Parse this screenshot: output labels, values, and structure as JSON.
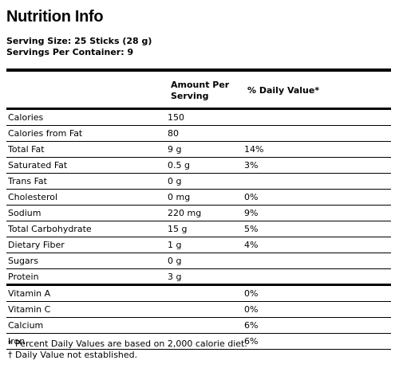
{
  "title": "Nutrition Info",
  "serving": {
    "size": "Serving Size: 25 Sticks (28 g)",
    "per_container": "Servings Per Container: 9"
  },
  "table": {
    "header_amount": "Amount Per Serving",
    "header_dv": "% Daily Value*",
    "rows": [
      {
        "name": "Calories",
        "amount": "150",
        "dv": ""
      },
      {
        "name": "Calories from Fat",
        "amount": "80",
        "dv": ""
      },
      {
        "name": "Total Fat",
        "amount": "9 g",
        "dv": "14%"
      },
      {
        "name": "Saturated Fat",
        "amount": "0.5 g",
        "dv": "3%"
      },
      {
        "name": "Trans Fat",
        "amount": "0 g",
        "dv": ""
      },
      {
        "name": "Cholesterol",
        "amount": "0 mg",
        "dv": "0%"
      },
      {
        "name": "Sodium",
        "amount": "220 mg",
        "dv": "9%"
      },
      {
        "name": "Total Carbohydrate",
        "amount": "15 g",
        "dv": "5%"
      },
      {
        "name": "Dietary Fiber",
        "amount": "1 g",
        "dv": "4%"
      },
      {
        "name": "Sugars",
        "amount": "0 g",
        "dv": ""
      },
      {
        "name": "Protein",
        "amount": "3 g",
        "dv": ""
      },
      {
        "name": "Vitamin A",
        "amount": "",
        "dv": "0%"
      },
      {
        "name": "Vitamin C",
        "amount": "",
        "dv": "0%"
      },
      {
        "name": "Calcium",
        "amount": "",
        "dv": "6%"
      },
      {
        "name": "Iron",
        "amount": "",
        "dv": "6%"
      }
    ]
  },
  "footnotes": {
    "daily_values": "* Percent Daily Values are based on 2,000 calorie diet.",
    "not_established": "† Daily Value not established."
  }
}
